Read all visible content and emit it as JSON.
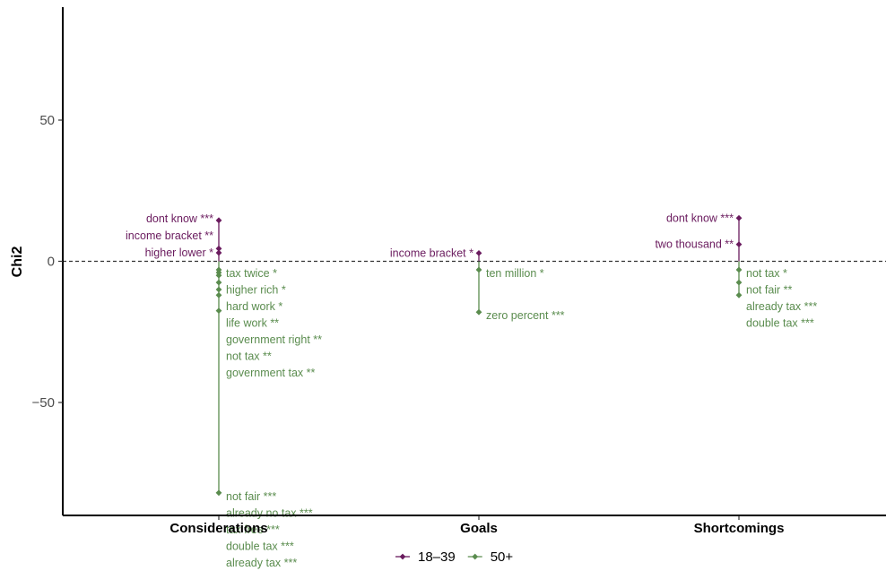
{
  "chart_data": {
    "type": "scatter",
    "title": "",
    "xlabel": "",
    "ylabel": "Chi2",
    "categories": [
      "Considerations",
      "Goals",
      "Shortcomings"
    ],
    "ylim": [
      -90,
      90
    ],
    "yticks": [
      -50,
      0,
      50
    ],
    "reference_line": {
      "y": 0,
      "style": "dashed"
    },
    "grid": false,
    "legend_position": "bottom",
    "colors": {
      "18-39": "#6a1b5e",
      "50+": "#5a8c4e"
    },
    "series": [
      {
        "name": "18–39",
        "key": "18-39",
        "points": [
          {
            "category": "Considerations",
            "y": 14.5,
            "label": "dont know ***"
          },
          {
            "category": "Considerations",
            "y": 4.5,
            "label": "income bracket **"
          },
          {
            "category": "Considerations",
            "y": 3.0,
            "label": "higher lower *"
          },
          {
            "category": "Goals",
            "y": 2.9,
            "label": "income bracket *"
          },
          {
            "category": "Shortcomings",
            "y": 15.3,
            "label": "dont know ***"
          },
          {
            "category": "Shortcomings",
            "y": 6.0,
            "label": "two thousand **"
          }
        ]
      },
      {
        "name": "50+",
        "key": "50+",
        "points": [
          {
            "category": "Considerations",
            "y": -3.0,
            "label": "tax twice *"
          },
          {
            "category": "Considerations",
            "y": -4.0,
            "label": "higher rich *"
          },
          {
            "category": "Considerations",
            "y": -5.0,
            "label": "hard work *"
          },
          {
            "category": "Considerations",
            "y": -7.5,
            "label": "life work **"
          },
          {
            "category": "Considerations",
            "y": -10.0,
            "label": "government right **"
          },
          {
            "category": "Considerations",
            "y": -12.0,
            "label": "not tax **"
          },
          {
            "category": "Considerations",
            "y": -17.5,
            "label": "government tax **"
          },
          {
            "category": "Considerations",
            "y": -82.0,
            "label": "not fair ***"
          },
          {
            "category": "Considerations",
            "y": -82.0,
            "label": "already no tax ***"
          },
          {
            "category": "Considerations",
            "y": -82.0,
            "label": "tax free ***"
          },
          {
            "category": "Considerations",
            "y": -82.0,
            "label": "double tax ***"
          },
          {
            "category": "Considerations",
            "y": -82.0,
            "label": "already tax ***"
          },
          {
            "category": "Goals",
            "y": -3.0,
            "label": "ten million *"
          },
          {
            "category": "Goals",
            "y": -18.0,
            "label": "zero percent ***"
          },
          {
            "category": "Shortcomings",
            "y": -3.0,
            "label": "not tax *"
          },
          {
            "category": "Shortcomings",
            "y": -7.5,
            "label": "not fair **"
          },
          {
            "category": "Shortcomings",
            "y": -12.0,
            "label": "already tax ***"
          },
          {
            "category": "Shortcomings",
            "y": -12.0,
            "label": "double tax ***"
          }
        ]
      }
    ]
  }
}
